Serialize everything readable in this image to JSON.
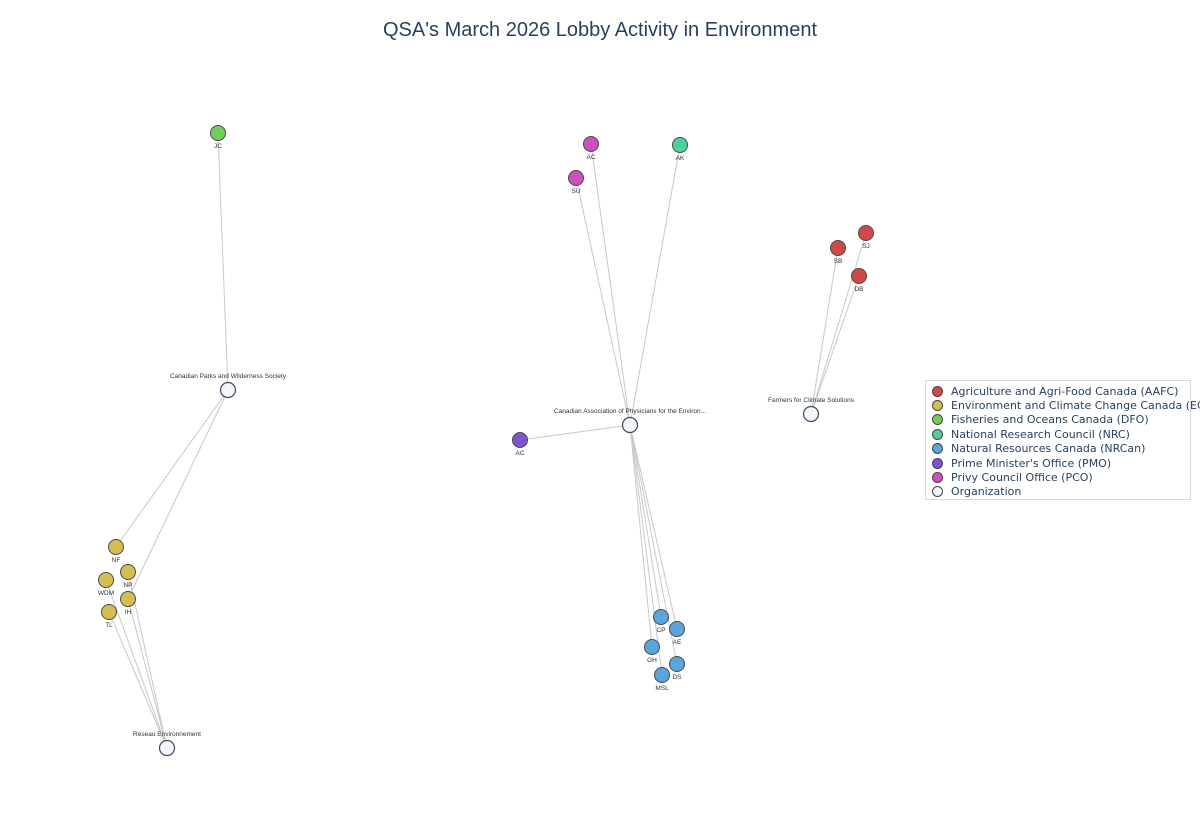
{
  "title": "QSA's March 2026 Lobby Activity in Environment",
  "colors": {
    "AAFC": "#d04848",
    "ECCC": "#d4be4f",
    "DFO": "#6fcf5a",
    "NRC": "#4ecf9b",
    "NRCan": "#5aa5dc",
    "PMO": "#7a55d4",
    "PCO": "#cf4fbf",
    "ORG": "#f2f5fa",
    "edge": "#c8c8c8",
    "node_border": "#4a4a4a",
    "title": "#2a3f5f"
  },
  "legend": [
    {
      "key": "AAFC",
      "label": "Agriculture and Agri-Food Canada (AAFC)"
    },
    {
      "key": "ECCC",
      "label": "Environment and Climate Change Canada (ECCC)"
    },
    {
      "key": "DFO",
      "label": "Fisheries and Oceans Canada (DFO)"
    },
    {
      "key": "NRC",
      "label": "National Research Council (NRC)"
    },
    {
      "key": "NRCan",
      "label": "Natural Resources Canada (NRCan)"
    },
    {
      "key": "PMO",
      "label": "Prime Minister's Office (PMO)"
    },
    {
      "key": "PCO",
      "label": "Privy Council Office (PCO)"
    },
    {
      "key": "ORG",
      "label": "Organization"
    }
  ],
  "organizations": [
    {
      "id": "cpaws",
      "label": "Canadian Parks and Wilderness Society"
    },
    {
      "id": "reseau",
      "label": "Réseau Environnement"
    },
    {
      "id": "capeh",
      "label": "Canadian Association of Physicians for the Environ..."
    },
    {
      "id": "ffcs",
      "label": "Farmers for Climate Solutions"
    }
  ],
  "officials": [
    {
      "id": "jc",
      "label": "JC",
      "dept": "DFO"
    },
    {
      "id": "nf",
      "label": "NF",
      "dept": "ECCC"
    },
    {
      "id": "np",
      "label": "NP",
      "dept": "ECCC"
    },
    {
      "id": "wdm",
      "label": "WDM",
      "dept": "ECCC"
    },
    {
      "id": "ih",
      "label": "IH",
      "dept": "ECCC"
    },
    {
      "id": "tl",
      "label": "TL",
      "dept": "ECCC"
    },
    {
      "id": "ac1",
      "label": "AC",
      "dept": "PCO"
    },
    {
      "id": "su",
      "label": "SU",
      "dept": "PCO"
    },
    {
      "id": "ak",
      "label": "AK",
      "dept": "NRC"
    },
    {
      "id": "ac2",
      "label": "AC",
      "dept": "PMO"
    },
    {
      "id": "cp",
      "label": "CP",
      "dept": "NRCan"
    },
    {
      "id": "ae",
      "label": "AE",
      "dept": "NRCan"
    },
    {
      "id": "gh",
      "label": "GH",
      "dept": "NRCan"
    },
    {
      "id": "ds",
      "label": "DS",
      "dept": "NRCan"
    },
    {
      "id": "msl",
      "label": "MSL",
      "dept": "NRCan"
    },
    {
      "id": "sb",
      "label": "SB",
      "dept": "AAFC"
    },
    {
      "id": "sj",
      "label": "SJ",
      "dept": "AAFC"
    },
    {
      "id": "db",
      "label": "DB",
      "dept": "AAFC"
    }
  ],
  "edges": [
    [
      "jc",
      "cpaws"
    ],
    [
      "nf",
      "cpaws"
    ],
    [
      "ih",
      "cpaws"
    ],
    [
      "np",
      "reseau"
    ],
    [
      "wdm",
      "reseau"
    ],
    [
      "tl",
      "reseau"
    ],
    [
      "ih",
      "reseau"
    ],
    [
      "ac1",
      "capeh"
    ],
    [
      "su",
      "capeh"
    ],
    [
      "ak",
      "capeh"
    ],
    [
      "ac2",
      "capeh"
    ],
    [
      "cp",
      "capeh"
    ],
    [
      "ae",
      "capeh"
    ],
    [
      "gh",
      "capeh"
    ],
    [
      "ds",
      "capeh"
    ],
    [
      "msl",
      "capeh"
    ],
    [
      "sb",
      "ffcs"
    ],
    [
      "sj",
      "ffcs"
    ],
    [
      "db",
      "ffcs"
    ]
  ]
}
